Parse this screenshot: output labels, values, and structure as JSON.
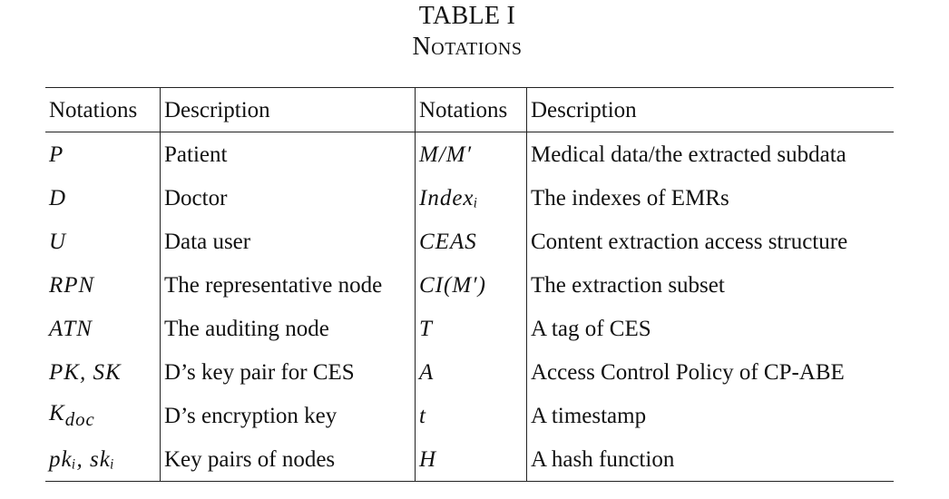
{
  "caption": {
    "number": "TABLE I",
    "title": "Notations"
  },
  "table": {
    "headers": [
      "Notations",
      "Description",
      "Notations",
      "Description"
    ],
    "rows": [
      {
        "n1": "P",
        "d1": "Patient",
        "n2": "M/M′",
        "d2": "Medical data/the extracted subdata"
      },
      {
        "n1": "D",
        "d1": "Doctor",
        "n2": "Indexᵢ",
        "d2": "The indexes of EMRs"
      },
      {
        "n1": "U",
        "d1": "Data user",
        "n2": "CEAS",
        "d2": "Content extraction access structure"
      },
      {
        "n1": "RPN",
        "d1": "The representative node",
        "n2": "CI(M′)",
        "d2": "The extraction subset"
      },
      {
        "n1": "ATN",
        "d1": "The auditing node",
        "n2": "T",
        "d2": "A tag of CES"
      },
      {
        "n1": "PK, SK",
        "d1": "D’s key pair for CES",
        "n2": "A",
        "d2": "Access Control Policy of CP-ABE"
      },
      {
        "n1": "K_doc",
        "d1": "D’s encryption key",
        "n2": "t",
        "d2": "A timestamp"
      },
      {
        "n1": "pkᵢ, skᵢ",
        "d1": "Key pairs of nodes",
        "n2": "H",
        "d2": "A hash function"
      }
    ]
  }
}
